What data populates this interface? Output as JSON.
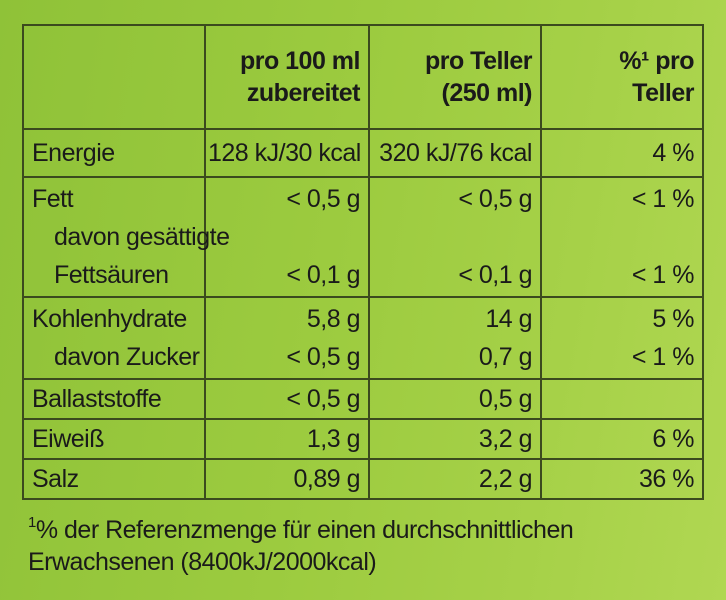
{
  "header": {
    "col_label": "",
    "col_100ml_line1": "pro 100 ml",
    "col_100ml_line2": "zubereitet",
    "col_teller_line1": "pro Teller",
    "col_teller_line2": "(250 ml)",
    "col_pct_line1": "%¹ pro",
    "col_pct_line2": "Teller"
  },
  "rows": {
    "energie": {
      "label": "Energie",
      "per100": "128 kJ/30 kcal",
      "teller": "320 kJ/76 kcal",
      "pct": "4 %"
    },
    "fett": {
      "label": "Fett",
      "per100": "< 0,5 g",
      "teller": "< 0,5 g",
      "pct": "< 1 %"
    },
    "fett_sub": {
      "label_line1": "davon gesättigte",
      "label_line2": "Fettsäuren",
      "per100": "< 0,1 g",
      "teller": "< 0,1 g",
      "pct": "< 1 %"
    },
    "kohlenhydrate": {
      "label": "Kohlenhydrate",
      "per100": "5,8 g",
      "teller": "14 g",
      "pct": "5 %"
    },
    "zucker": {
      "label": "davon Zucker",
      "per100": "< 0,5 g",
      "teller": "0,7 g",
      "pct": "< 1 %"
    },
    "ballaststoffe": {
      "label": "Ballaststoffe",
      "per100": "< 0,5 g",
      "teller": "0,5 g",
      "pct": ""
    },
    "eiweiss": {
      "label": "Eiweiß",
      "per100": "1,3 g",
      "teller": "3,2 g",
      "pct": "6 %"
    },
    "salz": {
      "label": "Salz",
      "per100": "0,89 g",
      "teller": "2,2 g",
      "pct": "36 %"
    }
  },
  "footnote": {
    "marker": "1",
    "line1": "% der Referenzmenge für einen durchschnittlichen",
    "line2": "Erwachsenen (8400kJ/2000kcal)"
  }
}
